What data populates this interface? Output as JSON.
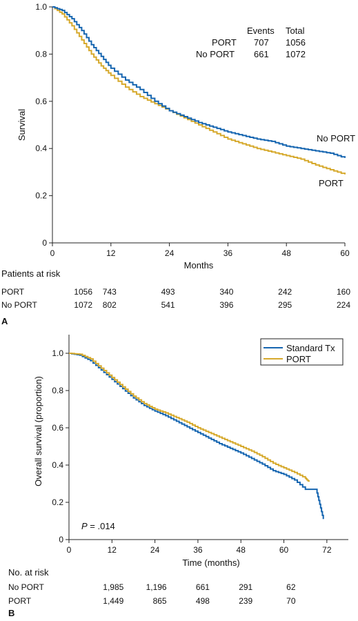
{
  "colors": {
    "blue": "#1565b0",
    "gold": "#d6a92c",
    "axis": "#222222"
  },
  "panel_labels": [
    "A",
    "B"
  ],
  "chart_data": [
    {
      "type": "line",
      "panel": "A",
      "xlabel": "Months",
      "ylabel": "Survival",
      "xlim": [
        0,
        60
      ],
      "ylim": [
        0,
        1
      ],
      "xticks": [
        0,
        12,
        24,
        36,
        48,
        60
      ],
      "yticks": [
        "0",
        "0.2",
        "0.4",
        "0.6",
        "0.8",
        "1.0"
      ],
      "series": [
        {
          "name": "PORT",
          "color": "#d6a92c",
          "x": [
            0,
            2,
            4,
            6,
            8,
            10,
            12,
            15,
            18,
            21,
            24,
            27,
            30,
            33,
            36,
            39,
            42,
            45,
            48,
            51,
            54,
            57,
            60
          ],
          "y": [
            1.0,
            0.97,
            0.92,
            0.86,
            0.8,
            0.75,
            0.71,
            0.66,
            0.62,
            0.59,
            0.56,
            0.53,
            0.5,
            0.47,
            0.44,
            0.42,
            0.4,
            0.385,
            0.37,
            0.355,
            0.33,
            0.31,
            0.29
          ]
        },
        {
          "name": "No PORT",
          "color": "#1565b0",
          "x": [
            0,
            2,
            4,
            6,
            8,
            10,
            12,
            15,
            18,
            21,
            24,
            27,
            30,
            33,
            36,
            39,
            42,
            45,
            48,
            51,
            54,
            57,
            60
          ],
          "y": [
            1.0,
            0.985,
            0.95,
            0.9,
            0.84,
            0.79,
            0.74,
            0.69,
            0.65,
            0.6,
            0.56,
            0.535,
            0.51,
            0.49,
            0.47,
            0.455,
            0.44,
            0.43,
            0.41,
            0.4,
            0.39,
            0.38,
            0.36
          ]
        }
      ],
      "series_labels": [
        "No PORT",
        "PORT"
      ],
      "events_table": {
        "headers": [
          "",
          "Events",
          "Total"
        ],
        "rows": [
          [
            "PORT",
            "707",
            "1056"
          ],
          [
            "No PORT",
            "661",
            "1072"
          ]
        ]
      },
      "risk_table": {
        "title": "Patients at risk",
        "rows": [
          {
            "label": "PORT",
            "values": [
              "1056",
              "743",
              "493",
              "340",
              "242",
              "160"
            ]
          },
          {
            "label": "No PORT",
            "values": [
              "1072",
              "802",
              "541",
              "396",
              "295",
              "224"
            ]
          }
        ]
      }
    },
    {
      "type": "line",
      "panel": "B",
      "xlabel": "Time (months)",
      "ylabel": "Overall survival (proportion)",
      "xlim": [
        0,
        78
      ],
      "ylim": [
        0,
        1.1
      ],
      "xticks": [
        0,
        12,
        24,
        36,
        48,
        60,
        72
      ],
      "yticks": [
        "0",
        "0.2",
        "0.4",
        "0.6",
        "0.8",
        "1.0"
      ],
      "series": [
        {
          "name": "Standard Tx",
          "color": "#1565b0",
          "x": [
            0,
            3,
            6,
            9,
            12,
            15,
            18,
            21,
            24,
            27,
            30,
            33,
            36,
            39,
            42,
            45,
            48,
            51,
            54,
            57,
            60,
            63,
            66,
            69,
            70,
            71
          ],
          "y": [
            1.0,
            0.99,
            0.96,
            0.91,
            0.86,
            0.81,
            0.76,
            0.72,
            0.69,
            0.665,
            0.635,
            0.605,
            0.575,
            0.545,
            0.515,
            0.49,
            0.465,
            0.435,
            0.405,
            0.37,
            0.35,
            0.32,
            0.27,
            0.27,
            0.19,
            0.11
          ]
        },
        {
          "name": "PORT",
          "color": "#d6a92c",
          "x": [
            0,
            3,
            6,
            9,
            12,
            15,
            18,
            21,
            24,
            27,
            30,
            33,
            36,
            39,
            42,
            45,
            48,
            51,
            54,
            57,
            60,
            63,
            66,
            67
          ],
          "y": [
            1.0,
            0.995,
            0.97,
            0.92,
            0.87,
            0.82,
            0.77,
            0.73,
            0.7,
            0.68,
            0.655,
            0.63,
            0.6,
            0.575,
            0.55,
            0.525,
            0.5,
            0.475,
            0.445,
            0.41,
            0.385,
            0.36,
            0.33,
            0.31
          ]
        }
      ],
      "legend": [
        "Standard Tx",
        "PORT"
      ],
      "legend_position": "top-right",
      "annotation": {
        "p_label": "P",
        "p_value": " = .014"
      },
      "risk_table": {
        "title": "No. at risk",
        "rows": [
          {
            "label": "No PORT",
            "values": [
              "1,985",
              "1,196",
              "661",
              "291",
              "62"
            ]
          },
          {
            "label": "PORT",
            "values": [
              "1,449",
              "865",
              "498",
              "239",
              "70"
            ]
          }
        ]
      }
    }
  ]
}
